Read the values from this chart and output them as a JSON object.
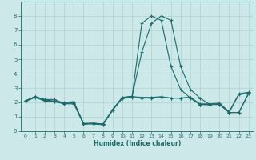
{
  "xlabel": "Humidex (Indice chaleur)",
  "bg_color": "#cce8e8",
  "line_color": "#1a6b6b",
  "grid_color": "#b0d0d0",
  "xlim": [
    -0.5,
    23.5
  ],
  "ylim": [
    0,
    9
  ],
  "xticks": [
    0,
    1,
    2,
    3,
    4,
    5,
    6,
    7,
    8,
    9,
    10,
    11,
    12,
    13,
    14,
    15,
    16,
    17,
    18,
    19,
    20,
    21,
    22,
    23
  ],
  "yticks": [
    0,
    1,
    2,
    3,
    4,
    5,
    6,
    7,
    8
  ],
  "series": [
    [
      2.1,
      2.4,
      2.2,
      2.2,
      1.9,
      1.9,
      0.5,
      0.55,
      0.5,
      1.5,
      2.3,
      2.35,
      2.3,
      2.3,
      2.35,
      2.3,
      2.3,
      2.35,
      1.9,
      1.9,
      1.95,
      1.35,
      2.6,
      2.7
    ],
    [
      2.1,
      2.4,
      2.15,
      2.1,
      2.0,
      2.05,
      0.5,
      0.55,
      0.5,
      1.5,
      2.35,
      2.4,
      2.35,
      2.35,
      2.4,
      2.3,
      2.3,
      2.35,
      1.85,
      1.85,
      1.9,
      1.3,
      1.3,
      2.65
    ],
    [
      2.1,
      2.4,
      2.2,
      2.05,
      1.9,
      2.0,
      0.55,
      0.55,
      0.5,
      1.5,
      2.35,
      2.42,
      5.5,
      7.5,
      8.0,
      7.7,
      4.5,
      2.9,
      2.3,
      1.85,
      1.9,
      1.3,
      1.3,
      2.6
    ],
    [
      2.05,
      2.35,
      2.1,
      2.05,
      1.95,
      1.95,
      0.5,
      0.5,
      0.45,
      1.45,
      2.3,
      2.42,
      7.5,
      8.0,
      7.7,
      4.5,
      2.9,
      2.3,
      1.85,
      1.85,
      1.85,
      1.3,
      2.55,
      2.65
    ]
  ]
}
